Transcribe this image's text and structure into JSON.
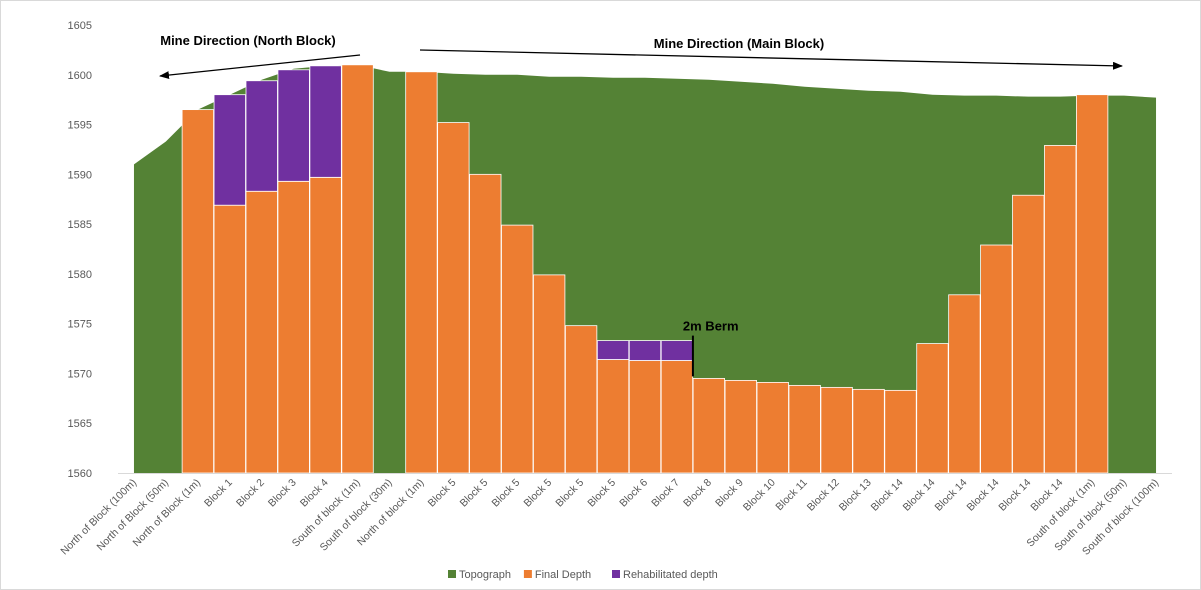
{
  "chart_data": {
    "type": "bar",
    "title": "",
    "xlabel": "",
    "ylabel": "",
    "ylim": [
      1560,
      1605
    ],
    "yticks": [
      1560,
      1565,
      1570,
      1575,
      1580,
      1585,
      1590,
      1595,
      1600,
      1605
    ],
    "grid": false,
    "legend_position": "bottom",
    "categories": [
      "North of Block (100m)",
      "North of Block (50m)",
      "North of Block (1m)",
      "Block 1",
      "Block 2",
      "Block 3",
      "Block 4",
      "South of block (1m)",
      "South of block (30m)",
      "North of block (1m)",
      "Block 5",
      "Block 5",
      "Block 5",
      "Block 5",
      "Block 5",
      "Block 5",
      "Block 6",
      "Block 7",
      "Block 8",
      "Block 9",
      "Block 10",
      "Block 11",
      "Block 12",
      "Block 13",
      "Block 14",
      "Block 14",
      "Block 14",
      "Block 14",
      "Block 14",
      "Block 14",
      "South of block (1m)",
      "South of block (50m)",
      "South of block (100m)"
    ],
    "series": [
      {
        "name": "Topograph",
        "kind": "area",
        "color": "#548235",
        "values": [
          1591,
          1593.3,
          1596.5,
          1598,
          1599.5,
          1600.6,
          1600.9,
          1601,
          1600.3,
          1600.3,
          1600.1,
          1600,
          1600,
          1599.8,
          1599.8,
          1599.7,
          1599.7,
          1599.6,
          1599.5,
          1599.3,
          1599.1,
          1598.8,
          1598.6,
          1598.4,
          1598.3,
          1598,
          1597.9,
          1597.9,
          1597.8,
          1597.8,
          1597.9,
          1597.9,
          1597.7
        ]
      },
      {
        "name": "Final Depth",
        "kind": "bar",
        "color": "#ED7D31",
        "values": [
          null,
          null,
          1596.5,
          1586.9,
          1588.3,
          1589.3,
          1589.7,
          1601,
          null,
          1600.3,
          1595.2,
          1590,
          1584.9,
          1579.9,
          1574.8,
          1571.4,
          1571.3,
          1571.3,
          1569.5,
          1569.3,
          1569.1,
          1568.8,
          1568.6,
          1568.4,
          1568.3,
          1573,
          1577.9,
          1582.9,
          1587.9,
          1592.9,
          1598,
          null,
          null
        ]
      },
      {
        "name": "Rehabilitated depth",
        "kind": "bar",
        "color": "#7030A0",
        "values": [
          null,
          null,
          null,
          1598,
          1599.4,
          1600.5,
          1600.9,
          null,
          null,
          null,
          null,
          null,
          null,
          null,
          null,
          1573.3,
          1573.3,
          1573.3,
          null,
          null,
          null,
          null,
          null,
          null,
          null,
          null,
          null,
          null,
          null,
          null,
          null,
          null,
          null
        ]
      }
    ],
    "annotations": [
      {
        "text": "Mine Direction (North Block)",
        "arrow": "left"
      },
      {
        "text": "Mine Direction (Main Block)",
        "arrow": "right"
      },
      {
        "text": "2m Berm"
      }
    ]
  }
}
